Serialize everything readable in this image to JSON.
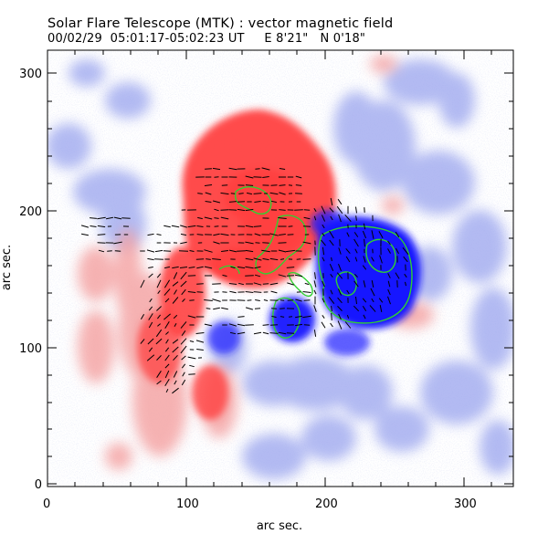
{
  "title": "Solar Flare Telescope (MTK) : vector magnetic field",
  "subtitle": "00/02/29  05:01:17-05:02:23 UT     E 8'21\"   N 0'18\"",
  "xlabel": "arc sec.",
  "ylabel": "arc sec.",
  "xticks": [
    "0",
    "100",
    "200",
    "300"
  ],
  "yticks": [
    "0",
    "100",
    "200",
    "300"
  ],
  "colors": {
    "positive": "#ff3030",
    "negative": "#2020ff",
    "contour": "#30d030",
    "vector": "#000000"
  }
}
